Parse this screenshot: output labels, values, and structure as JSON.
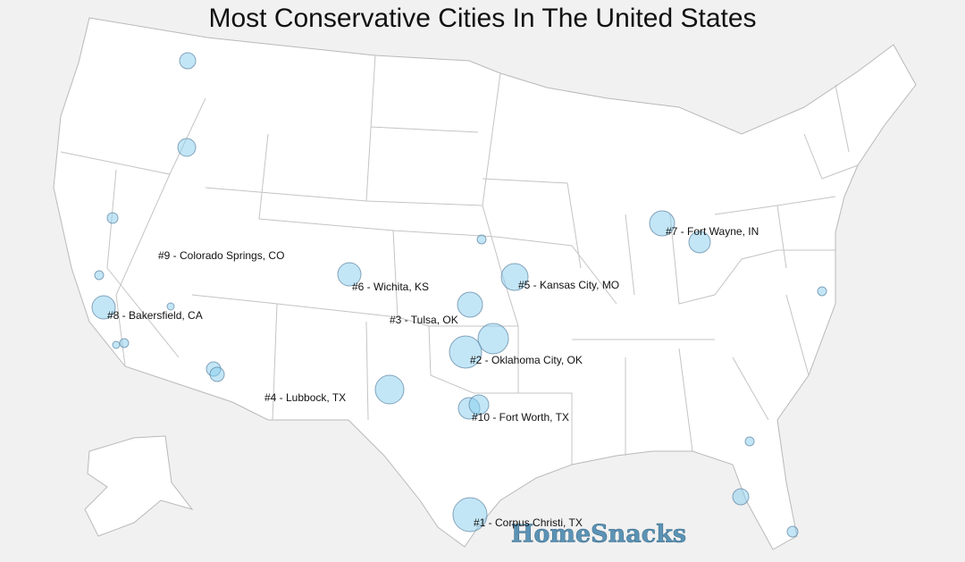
{
  "title": "Most Conservative Cities In The United States",
  "cities": [
    {
      "label": "#1 - Corpus Christi, TX"
    },
    {
      "label": "#2 - Oklahoma City, OK"
    },
    {
      "label": "#3 - Tulsa, OK"
    },
    {
      "label": "#4 - Lubbock, TX"
    },
    {
      "label": "#5 - Kansas City, MO"
    },
    {
      "label": "#6 - Wichita, KS"
    },
    {
      "label": "#7 - Fort Wayne, IN"
    },
    {
      "label": "#8 - Bakersfield, CA"
    },
    {
      "label": "#9 - Colorado Springs, CO"
    },
    {
      "label": "#10 - Fort Worth, TX"
    }
  ],
  "logo": "HomeSnacks"
}
